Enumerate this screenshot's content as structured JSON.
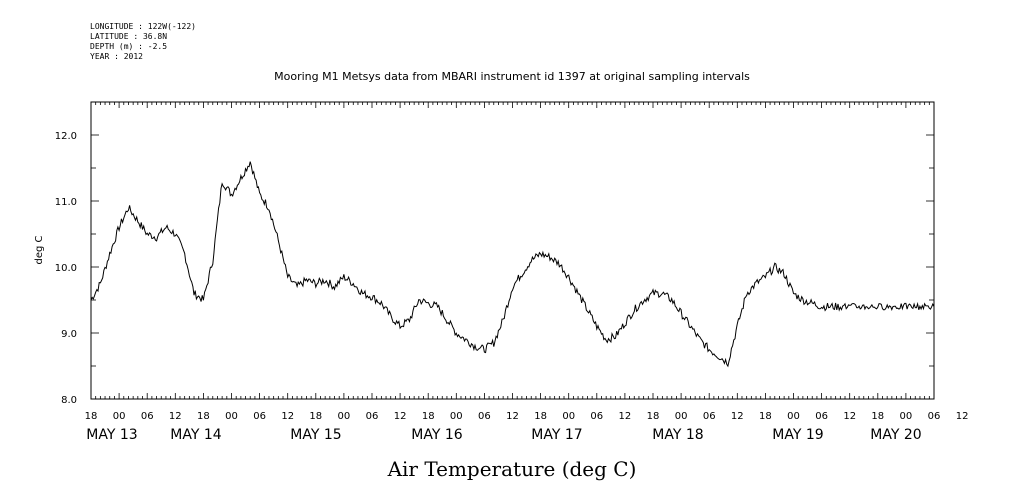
{
  "meta": {
    "longitude": "LONGITUDE : 122W(-122)",
    "latitude": "LATITUDE : 36.8N",
    "depth": "DEPTH (m) : -2.5",
    "year": "YEAR : 2012"
  },
  "chart_data": {
    "type": "line",
    "title": "Mooring M1 Metsys data from MBARI instrument id 1397 at original sampling intervals",
    "xlabel": "Air Temperature (deg C)",
    "ylabel": "deg C",
    "xlim_hours": [
      -6,
      174
    ],
    "ylim": [
      8.0,
      12.5
    ],
    "y_ticks": [
      8.0,
      9.0,
      10.0,
      11.0,
      12.0
    ],
    "y_tick_labels": [
      "8.0",
      "9.0",
      "10.0",
      "11.0",
      "12.0"
    ],
    "hour_labels": [
      "18",
      "00",
      "06",
      "12",
      "18",
      "00",
      "06",
      "12",
      "18",
      "00",
      "06",
      "12",
      "18",
      "00",
      "06",
      "12",
      "18",
      "00",
      "06",
      "12",
      "18",
      "00",
      "06",
      "12",
      "18",
      "00",
      "06",
      "12",
      "18",
      "00",
      "06",
      "12"
    ],
    "date_labels": [
      "MAY 13",
      "MAY 14",
      "MAY 15",
      "MAY 16",
      "MAY 17",
      "MAY 18",
      "MAY 19",
      "MAY 20"
    ],
    "grid": false,
    "series": [
      {
        "x": [
          -6,
          -4,
          -2,
          0,
          2,
          4,
          6,
          8,
          10,
          12,
          14,
          16,
          18,
          20,
          22,
          24,
          26,
          28,
          30,
          32,
          34,
          36,
          38,
          40,
          42,
          44,
          46,
          48,
          50,
          52,
          54,
          56,
          58,
          60,
          62,
          64,
          66,
          68,
          70,
          72,
          74,
          76,
          78,
          80,
          82,
          84,
          86,
          88,
          90,
          92,
          94,
          96,
          98,
          100,
          102,
          104,
          106,
          108,
          110,
          112,
          114,
          116,
          118,
          120,
          122,
          124,
          126,
          128,
          130,
          132,
          134,
          136,
          138,
          140,
          142,
          144,
          146,
          148,
          150,
          152,
          154,
          156,
          158,
          160,
          162,
          164,
          166,
          168,
          170,
          172,
          174
        ],
        "y": [
          9.5,
          9.75,
          10.2,
          10.6,
          10.9,
          10.7,
          10.5,
          10.45,
          10.6,
          10.5,
          10.2,
          9.6,
          9.5,
          10.1,
          11.3,
          11.1,
          11.35,
          11.6,
          11.1,
          10.9,
          10.4,
          9.85,
          9.7,
          9.8,
          9.75,
          9.8,
          9.7,
          9.85,
          9.75,
          9.6,
          9.55,
          9.45,
          9.25,
          9.1,
          9.2,
          9.5,
          9.45,
          9.4,
          9.2,
          9.0,
          8.9,
          8.8,
          8.75,
          8.85,
          9.2,
          9.7,
          9.9,
          10.1,
          10.2,
          10.15,
          10.05,
          9.85,
          9.6,
          9.35,
          9.1,
          8.9,
          8.95,
          9.15,
          9.35,
          9.5,
          9.6,
          9.6,
          9.5,
          9.3,
          9.1,
          8.9,
          8.75,
          8.65,
          8.55,
          9.1,
          9.6,
          9.75,
          9.85,
          10.0,
          9.9,
          9.6,
          9.5,
          9.45,
          9.4,
          9.4,
          9.4,
          9.4,
          9.4,
          9.4,
          9.4,
          9.4,
          9.4,
          9.4,
          9.4,
          9.4,
          9.4
        ]
      }
    ]
  }
}
